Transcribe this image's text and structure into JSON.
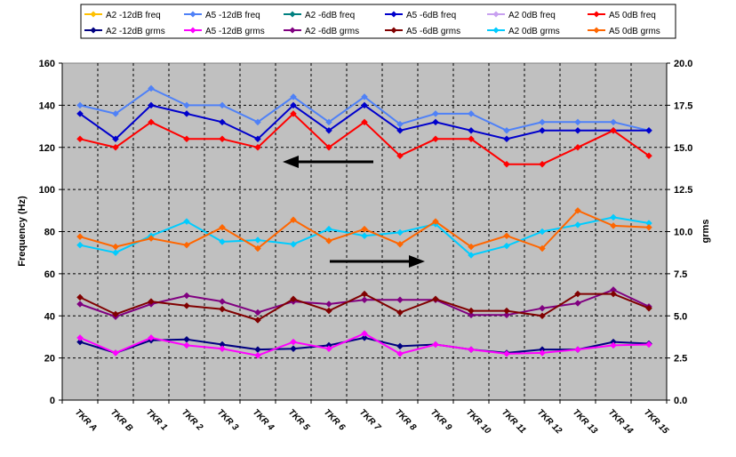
{
  "chart_data": {
    "type": "line",
    "title": "",
    "xlabel": "",
    "ylabel": "Frequency (Hz)",
    "y2label": "grms",
    "ylim": [
      0,
      160
    ],
    "y2lim": [
      0,
      20
    ],
    "yticks": [
      "0",
      "20",
      "40",
      "60",
      "80",
      "100",
      "120",
      "140",
      "160"
    ],
    "y2ticks": [
      "0.0",
      "2.5",
      "5.0",
      "7.5",
      "10.0",
      "12.5",
      "15.0",
      "17.5",
      "20.0"
    ],
    "grid": true,
    "legend_position": "top",
    "categories": [
      "TKR A",
      "TKR B",
      "TKR 1",
      "TKR 2",
      "TKR 3",
      "TKR 4",
      "TKR 5",
      "TKR 6",
      "TKR 7",
      "TKR 8",
      "TKR 9",
      "TKR 10",
      "TKR 11",
      "TKR 12",
      "TKR 13",
      "TKR 14",
      "TKR 15"
    ],
    "series": [
      {
        "name": "A2 -12dB freq",
        "color": "#ffc000",
        "axis": "left",
        "values": [
          null,
          null,
          null,
          null,
          null,
          null,
          null,
          null,
          null,
          null,
          null,
          null,
          null,
          null,
          null,
          null,
          null
        ]
      },
      {
        "name": "A5 -12dB freq",
        "color": "#4f81f7",
        "axis": "left",
        "values": [
          140,
          136,
          148,
          140,
          140,
          132,
          144,
          132,
          144,
          131,
          136,
          136,
          128,
          132,
          132,
          132,
          128
        ]
      },
      {
        "name": "A2 -6dB freq",
        "color": "#008080",
        "axis": "left",
        "values": [
          null,
          null,
          null,
          null,
          null,
          null,
          null,
          null,
          null,
          null,
          null,
          null,
          null,
          null,
          null,
          null,
          null
        ]
      },
      {
        "name": "A5 -6dB freq",
        "color": "#0000cc",
        "axis": "left",
        "values": [
          136,
          124,
          140,
          136,
          132,
          124,
          140,
          128,
          140,
          128,
          132,
          128,
          124,
          128,
          128,
          128,
          128
        ]
      },
      {
        "name": "A2 0dB freq",
        "color": "#c8a0f0",
        "axis": "left",
        "values": [
          null,
          null,
          null,
          null,
          null,
          null,
          null,
          null,
          null,
          null,
          null,
          null,
          null,
          null,
          null,
          null,
          null
        ]
      },
      {
        "name": "A5 0dB freq",
        "color": "#ff0000",
        "axis": "left",
        "values": [
          124,
          120,
          132,
          124,
          124,
          120,
          136,
          120,
          132,
          116,
          124,
          124,
          112,
          112,
          120,
          128,
          116
        ]
      },
      {
        "name": "A2 -12dB grms",
        "color": "#000080",
        "axis": "right",
        "values": [
          3.45,
          2.8,
          3.55,
          3.6,
          3.3,
          3.0,
          3.05,
          3.25,
          3.7,
          3.2,
          3.3,
          3.0,
          2.8,
          3.0,
          3.0,
          3.45,
          3.35
        ]
      },
      {
        "name": "A5 -12dB grms",
        "color": "#ff00ff",
        "axis": "right",
        "values": [
          3.7,
          2.8,
          3.7,
          3.25,
          3.05,
          2.65,
          3.45,
          3.05,
          3.95,
          2.75,
          3.3,
          3.0,
          2.75,
          2.8,
          3.0,
          3.25,
          3.3
        ]
      },
      {
        "name": "A2 -6dB grms",
        "color": "#800080",
        "axis": "right",
        "values": [
          5.7,
          4.95,
          5.7,
          6.2,
          5.85,
          5.2,
          5.85,
          5.7,
          5.95,
          5.95,
          5.95,
          5.05,
          5.05,
          5.45,
          5.75,
          6.55,
          5.55
        ]
      },
      {
        "name": "A5 -6dB grms",
        "color": "#800000",
        "axis": "right",
        "values": [
          6.1,
          5.1,
          5.85,
          5.6,
          5.4,
          4.75,
          6.0,
          5.3,
          6.3,
          5.2,
          6.0,
          5.3,
          5.3,
          5.0,
          6.3,
          6.3,
          5.45
        ]
      },
      {
        "name": "A2 0dB grms",
        "color": "#00ccff",
        "axis": "right",
        "values": [
          9.2,
          8.75,
          9.75,
          10.6,
          9.4,
          9.5,
          9.25,
          10.15,
          9.75,
          9.95,
          10.45,
          8.6,
          9.15,
          10.0,
          10.4,
          10.85,
          10.5
        ]
      },
      {
        "name": "A5 0dB grms",
        "color": "#ff6600",
        "axis": "right",
        "values": [
          9.7,
          9.1,
          9.6,
          9.2,
          10.25,
          9.0,
          10.7,
          9.45,
          10.15,
          9.25,
          10.6,
          9.1,
          9.75,
          9.0,
          11.25,
          10.35,
          10.25
        ]
      }
    ]
  }
}
